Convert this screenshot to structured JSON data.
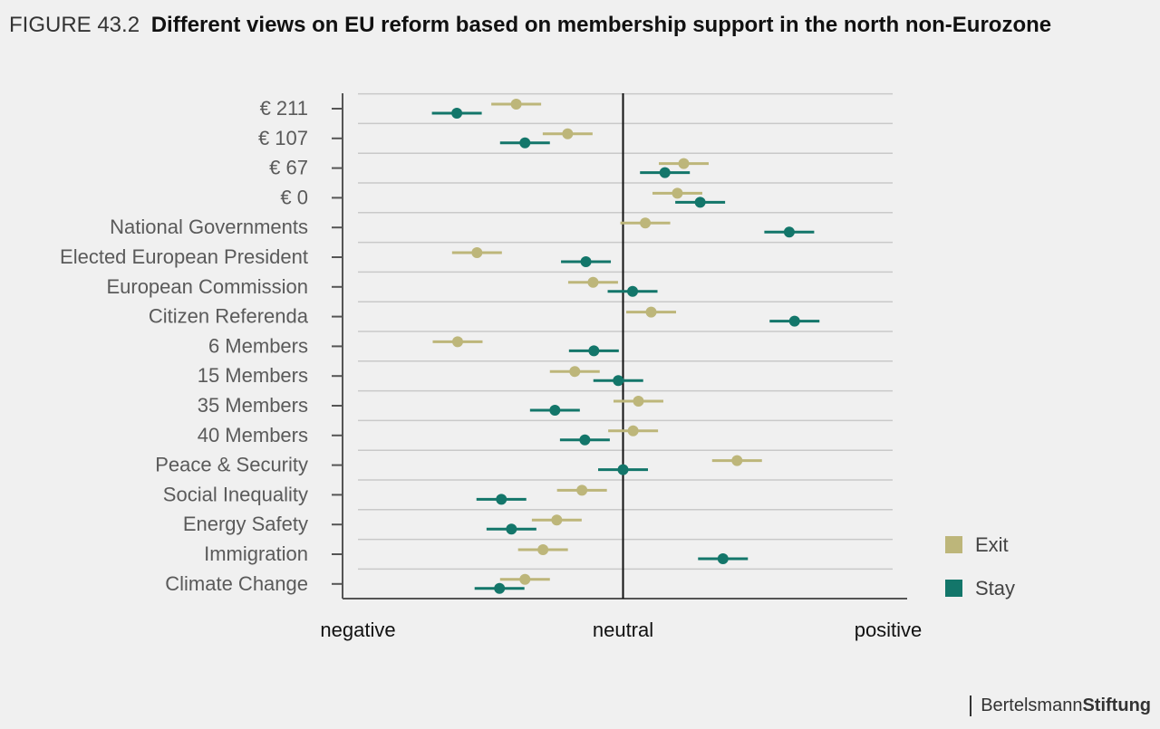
{
  "figure": {
    "label": "FIGURE 43.2",
    "title": "Different views on EU reform based on membership support in the north non-Eurozone"
  },
  "brand": {
    "part1": "Bertelsmann",
    "part2": "Stiftung"
  },
  "colors": {
    "exit": "#bdb67a",
    "stay": "#13766a",
    "grid": "#c9c9c9",
    "axis": "#555555",
    "neutral": "#111111"
  },
  "chart_data": {
    "type": "scatter",
    "subtype": "dot-whisker",
    "categories": [
      "€ 211",
      "€ 107",
      "€ 67",
      "€ 0",
      "National Governments",
      "Elected European President",
      "European Commission",
      "Citizen Referenda",
      "6 Members",
      "15 Members",
      "35 Members",
      "40 Members",
      "Peace & Security",
      "Social Inequality",
      "Energy Safety",
      "Immigration",
      "Climate Change"
    ],
    "xlim": [
      -1,
      1
    ],
    "x_tick_values": [
      -1,
      0,
      1
    ],
    "x_tick_labels": [
      "negative",
      "neutral",
      "positive"
    ],
    "neutral_line": 0,
    "whisker_half_width": 0.094,
    "legend": {
      "position": "right-bottom"
    },
    "series": [
      {
        "name": "Exit",
        "values": [
          -0.403,
          -0.209,
          0.229,
          0.205,
          0.084,
          -0.551,
          -0.113,
          0.106,
          -0.624,
          -0.182,
          0.058,
          0.038,
          0.43,
          -0.155,
          -0.25,
          -0.302,
          -0.37
        ]
      },
      {
        "name": "Stay",
        "values": [
          -0.627,
          -0.37,
          0.158,
          0.291,
          0.627,
          -0.14,
          0.036,
          0.647,
          -0.11,
          -0.018,
          -0.257,
          -0.144,
          0.0,
          -0.459,
          -0.421,
          0.377,
          -0.466
        ]
      }
    ]
  }
}
